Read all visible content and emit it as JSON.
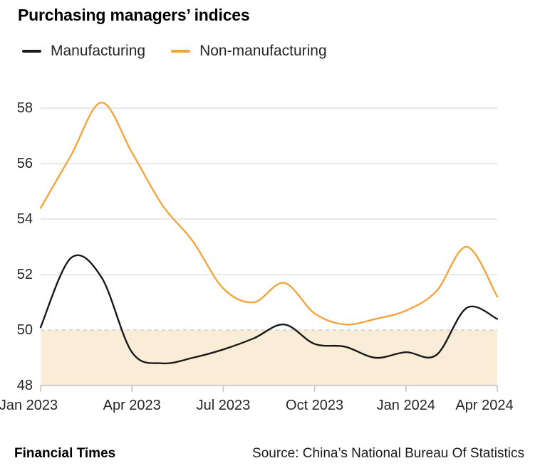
{
  "chart_data": {
    "type": "line",
    "title": "Purchasing managers’ indices",
    "x": [
      "Jan 2023",
      "Feb 2023",
      "Mar 2023",
      "Apr 2023",
      "May 2023",
      "Jun 2023",
      "Jul 2023",
      "Aug 2023",
      "Sep 2023",
      "Oct 2023",
      "Nov 2023",
      "Dec 2023",
      "Jan 2024",
      "Feb 2024",
      "Mar 2024",
      "Apr 2024"
    ],
    "series": [
      {
        "name": "Manufacturing",
        "color": "#1a1a1a",
        "values": [
          50.1,
          52.6,
          51.9,
          49.2,
          48.8,
          49.0,
          49.3,
          49.7,
          50.2,
          49.5,
          49.4,
          49.0,
          49.2,
          49.1,
          50.8,
          50.4
        ]
      },
      {
        "name": "Non-manufacturing",
        "color": "#F2A43F",
        "values": [
          54.4,
          56.3,
          58.2,
          56.4,
          54.5,
          53.2,
          51.5,
          51.0,
          51.7,
          50.6,
          50.2,
          50.4,
          50.7,
          51.4,
          53.0,
          51.2
        ]
      }
    ],
    "ylim": [
      48,
      58
    ],
    "yticks": [
      48,
      50,
      52,
      54,
      56,
      58
    ],
    "xtick_labels": [
      "Jan 2023",
      "Apr 2023",
      "Jul 2023",
      "Oct 2023",
      "Jan 2024",
      "Apr 2024"
    ],
    "xtick_indices": [
      0,
      3,
      6,
      9,
      12,
      15
    ],
    "reference_line": {
      "value": 50,
      "style": "dashed",
      "color": "#cccccc"
    },
    "shaded_band": {
      "from": 48,
      "to": 50,
      "color": "#FAEDD8"
    },
    "grid": "horizontal",
    "gridline_color": "#DBDBDB",
    "axis_color": "#C8C8C8",
    "legend_position": "top-left"
  },
  "footer": {
    "brand": "Financial Times",
    "source": "Source: China’s National Bureau Of Statistics"
  }
}
